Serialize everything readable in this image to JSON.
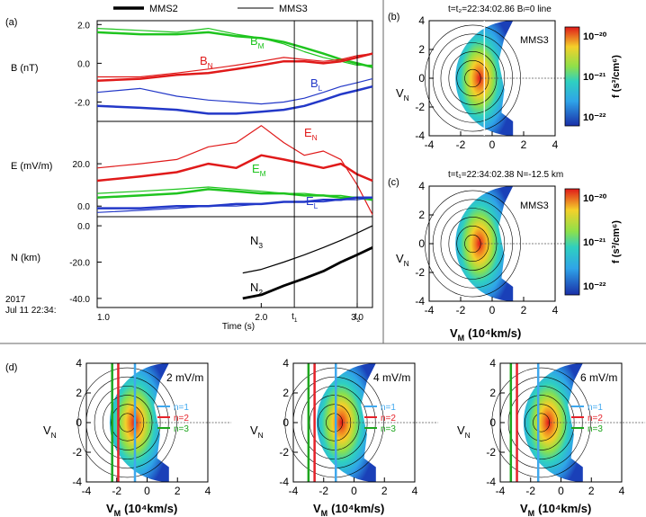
{
  "legend": {
    "mms2": "MMS2",
    "mms3": "MMS3"
  },
  "panel_labels": {
    "a": "(a)",
    "b": "(b)",
    "c": "(c)",
    "d": "(d)"
  },
  "colors": {
    "green": "#1fc41f",
    "red": "#e01a1a",
    "blue": "#2338c8",
    "black": "#000000",
    "cyan_line": "#3fa8ee",
    "red_line": "#e5222a",
    "green_line": "#1ea61e"
  },
  "chart_data": [
    {
      "type": "line",
      "title": "B (nT)",
      "ylabel": "B (nT)",
      "ylim": [
        -3,
        2.2
      ],
      "yticks": [
        "2.0",
        "0.0",
        "-2.0"
      ],
      "x": [
        1.0,
        1.2,
        1.4,
        1.6,
        1.8,
        2.0,
        2.2,
        2.4,
        2.6,
        2.8,
        3.0,
        3.2
      ],
      "series_labels": [
        {
          "text": "B",
          "sub": "M"
        },
        {
          "text": "B",
          "sub": "N"
        },
        {
          "text": "B",
          "sub": "L"
        }
      ],
      "series": [
        {
          "name": "BM MMS2",
          "color": "green",
          "width": 2.5,
          "values": [
            1.6,
            1.5,
            1.5,
            1.6,
            1.4,
            1.3,
            1.1,
            0.8,
            0.5,
            0.2,
            0.0,
            -0.2
          ]
        },
        {
          "name": "BM MMS3",
          "color": "green",
          "width": 1.2,
          "values": [
            1.8,
            1.7,
            1.6,
            1.8,
            1.5,
            1.3,
            1.0,
            0.6,
            0.3,
            0.1,
            -0.1,
            -0.1
          ]
        },
        {
          "name": "BN MMS2",
          "color": "red",
          "width": 2.5,
          "values": [
            -0.9,
            -0.8,
            -0.6,
            -0.5,
            -0.3,
            -0.1,
            0.1,
            0.1,
            0.0,
            0.1,
            0.3,
            0.5
          ]
        },
        {
          "name": "BN MMS3",
          "color": "red",
          "width": 1.2,
          "values": [
            -0.7,
            -0.7,
            -0.5,
            -0.3,
            -0.1,
            0.1,
            0.3,
            0.2,
            0.1,
            0.2,
            0.4,
            0.5
          ]
        },
        {
          "name": "BL MMS2",
          "color": "blue",
          "width": 2.5,
          "values": [
            -2.2,
            -2.3,
            -2.4,
            -2.6,
            -2.6,
            -2.5,
            -2.4,
            -2.2,
            -1.9,
            -1.6,
            -1.4,
            -1.2
          ]
        },
        {
          "name": "BL MMS3",
          "color": "blue",
          "width": 1.2,
          "values": [
            -1.5,
            -1.3,
            -1.7,
            -1.9,
            -2.0,
            -2.1,
            -2.0,
            -1.8,
            -1.5,
            -1.2,
            -1.0,
            -0.8
          ]
        }
      ]
    },
    {
      "type": "line",
      "title": "E (mV/m)",
      "ylabel": "E (mV/m)",
      "ylim": [
        -5,
        40
      ],
      "yticks": [
        "20.0",
        "0.0"
      ],
      "x": [
        1.0,
        1.2,
        1.4,
        1.6,
        1.8,
        2.0,
        2.2,
        2.4,
        2.6,
        2.8,
        3.0,
        3.2
      ],
      "series_labels": [
        {
          "text": "E",
          "sub": "N"
        },
        {
          "text": "E",
          "sub": "M"
        },
        {
          "text": "E",
          "sub": "L"
        }
      ],
      "series": [
        {
          "name": "EN MMS2",
          "color": "red",
          "width": 2.5,
          "values": [
            12,
            14,
            16,
            20,
            18,
            24,
            22,
            20,
            18,
            20,
            15,
            12
          ]
        },
        {
          "name": "EN MMS3",
          "color": "red",
          "width": 1.2,
          "values": [
            18,
            20,
            22,
            28,
            30,
            38,
            30,
            24,
            26,
            22,
            10,
            -4
          ]
        },
        {
          "name": "EM MMS2",
          "color": "green",
          "width": 2.5,
          "values": [
            4,
            5,
            6,
            8,
            7,
            6,
            6,
            5,
            5,
            4,
            4,
            3
          ]
        },
        {
          "name": "EM MMS3",
          "color": "green",
          "width": 1.2,
          "values": [
            6,
            7,
            8,
            9,
            8,
            7,
            6,
            6,
            5,
            5,
            4,
            4
          ]
        },
        {
          "name": "EL MMS2",
          "color": "blue",
          "width": 2.5,
          "values": [
            -1,
            -1,
            0,
            0,
            1,
            1,
            2,
            2,
            3,
            3,
            4,
            4
          ]
        },
        {
          "name": "EL MMS3",
          "color": "blue",
          "width": 1.2,
          "values": [
            -3,
            -2,
            -1,
            0,
            0,
            1,
            2,
            2,
            2,
            3,
            3,
            4
          ]
        }
      ]
    },
    {
      "type": "line",
      "title": "N (km)",
      "ylabel": "N (km)",
      "ylim": [
        -45,
        5
      ],
      "yticks": [
        "0.0",
        "-20.0",
        "-40.0"
      ],
      "xticks": [
        "1.0",
        "2.0",
        "3.0"
      ],
      "xtick_values": [
        1.0,
        2.0,
        3.0
      ],
      "xlabel": "Time (s)",
      "markers": [
        {
          "label": "t",
          "sub": "1",
          "x": 2.3
        },
        {
          "label": "t",
          "sub": "2",
          "x": 3.0
        }
      ],
      "series_labels": [
        {
          "text": "N",
          "sub": "3"
        },
        {
          "text": "N",
          "sub": "2"
        }
      ],
      "series": [
        {
          "name": "N3 MMS3",
          "color": "black",
          "width": 1.2,
          "x": [
            1.85,
            2.0,
            2.2,
            2.4,
            2.6,
            2.8,
            3.0,
            3.2
          ],
          "values": [
            -26,
            -24,
            -20,
            -16,
            -12,
            -8,
            -4,
            0
          ]
        },
        {
          "name": "N2 MMS2",
          "color": "black",
          "width": 2.8,
          "x": [
            1.85,
            2.0,
            2.2,
            2.4,
            2.6,
            2.8,
            3.0,
            3.2
          ],
          "values": [
            -40,
            -38,
            -33,
            -29,
            -25,
            -20,
            -16,
            -12
          ]
        }
      ]
    },
    {
      "type": "heatmap",
      "panel": "b",
      "title": "t=t₂=22:34:02.86   Bₗ=0 line",
      "probe": "MMS3",
      "xlabel": "V",
      "xlabel_sub": "M",
      "xlabel_unit": "(10⁴km/s)",
      "ylabel": "V",
      "ylabel_sub": "N",
      "xlim": [
        -4,
        4
      ],
      "ylim": [
        -4,
        4
      ],
      "ticks": [
        "-4",
        "-2",
        "0",
        "2",
        "4"
      ],
      "vline": -0.5,
      "colorbar": {
        "label": "f (s³/cm⁶)",
        "ticks": [
          "10⁻²⁰",
          "10⁻²¹",
          "10⁻²²"
        ]
      }
    },
    {
      "type": "heatmap",
      "panel": "c",
      "title": "t=t₁=22:34:02.38   N=-12.5 km",
      "probe": "MMS3",
      "xlim": [
        -4,
        4
      ],
      "ylim": [
        -4,
        4
      ],
      "ticks": [
        "-4",
        "-2",
        "0",
        "2",
        "4"
      ],
      "colorbar": {
        "label": "f (s³/cm⁶)",
        "ticks": [
          "10⁻²⁰",
          "10⁻²¹",
          "10⁻²²"
        ]
      }
    },
    {
      "type": "heatmap",
      "panel": "d",
      "subpanels": [
        {
          "efield": "2 mV/m",
          "lines": [
            {
              "n": "n=1",
              "v": -0.8
            },
            {
              "n": "n=2",
              "v": -1.9
            },
            {
              "n": "n=3",
              "v": -2.3
            }
          ]
        },
        {
          "efield": "4 mV/m",
          "lines": [
            {
              "n": "n=1",
              "v": -1.2
            },
            {
              "n": "n=2",
              "v": -2.6
            },
            {
              "n": "n=3",
              "v": -3.0
            }
          ]
        },
        {
          "efield": "6 mV/m",
          "lines": [
            {
              "n": "n=1",
              "v": -1.5
            },
            {
              "n": "n=2",
              "v": -2.9
            },
            {
              "n": "n=3",
              "v": -3.3
            }
          ]
        }
      ],
      "ticks": [
        "-4",
        "-2",
        "0",
        "2",
        "4"
      ],
      "legend_items": [
        "n=1",
        "n=2",
        "n=3"
      ]
    }
  ],
  "date_labels": {
    "year": "2017",
    "date": "Jul 11  22:34:"
  }
}
